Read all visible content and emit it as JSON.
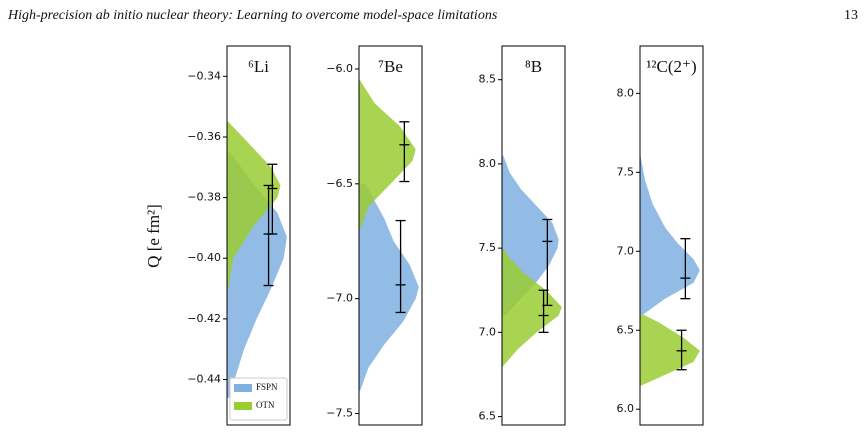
{
  "header": {
    "title": "High-precision ab initio nuclear theory: Learning to overcome model-space limitations",
    "page": "13"
  },
  "chart_data": [
    {
      "type": "density",
      "title": "⁶Li",
      "ylabel": "Q [e fm²]",
      "ylim": [
        -0.455,
        -0.33
      ],
      "xlim": [
        0,
        1
      ],
      "yticks": [
        {
          "value": -0.44,
          "label": "−0.44"
        },
        {
          "value": -0.42,
          "label": "−0.42"
        },
        {
          "value": -0.4,
          "label": "−0.40"
        },
        {
          "value": -0.38,
          "label": "−0.38"
        },
        {
          "value": -0.36,
          "label": "−0.36"
        },
        {
          "value": -0.34,
          "label": "−0.34"
        }
      ],
      "legend": "lower left",
      "series": [
        {
          "name": "FSPN",
          "color": "#7fb0e0",
          "y": [
            -0.446,
            -0.44,
            -0.43,
            -0.42,
            -0.41,
            -0.4,
            -0.393,
            -0.385,
            -0.375,
            -0.365
          ],
          "values": [
            0.05,
            0.12,
            0.27,
            0.47,
            0.7,
            0.9,
            0.95,
            0.8,
            0.4,
            0.05
          ]
        },
        {
          "name": "OTN",
          "color": "#9acd32",
          "y": [
            -0.41,
            -0.4,
            -0.39,
            -0.38,
            -0.376,
            -0.37,
            -0.36,
            -0.355
          ],
          "values": [
            0.02,
            0.1,
            0.4,
            0.8,
            0.85,
            0.7,
            0.25,
            0.02
          ]
        }
      ],
      "errorbars": [
        {
          "low": -0.392,
          "center": -0.377,
          "high": -0.369
        },
        {
          "low": -0.409,
          "center": -0.392,
          "high": -0.376
        }
      ]
    },
    {
      "type": "density",
      "title": "⁷Be",
      "ylim": [
        -7.55,
        -5.9
      ],
      "xlim": [
        0,
        1
      ],
      "yticks": [
        {
          "value": -7.5,
          "label": "−7.5"
        },
        {
          "value": -7.0,
          "label": "−7.0"
        },
        {
          "value": -6.5,
          "label": "−6.5"
        },
        {
          "value": -6.0,
          "label": "−6.0"
        }
      ],
      "series": [
        {
          "color": "#7fb0e0",
          "y": [
            -7.4,
            -7.3,
            -7.2,
            -7.1,
            -7.0,
            -6.95,
            -6.85,
            -6.75,
            -6.65,
            -6.5
          ],
          "values": [
            0.02,
            0.15,
            0.4,
            0.7,
            0.9,
            0.95,
            0.8,
            0.55,
            0.4,
            0.1
          ]
        },
        {
          "color": "#9acd32",
          "y": [
            -6.7,
            -6.6,
            -6.5,
            -6.4,
            -6.35,
            -6.25,
            -6.15,
            -6.05
          ],
          "values": [
            0.02,
            0.15,
            0.5,
            0.85,
            0.9,
            0.65,
            0.25,
            0.02
          ]
        }
      ],
      "errorbars": [
        {
          "low": -6.49,
          "center": -6.33,
          "high": -6.23
        },
        {
          "low": -7.06,
          "center": -6.94,
          "high": -6.66
        }
      ]
    },
    {
      "type": "density",
      "title": "⁸B",
      "ylim": [
        6.45,
        8.7
      ],
      "xlim": [
        0,
        1
      ],
      "yticks": [
        {
          "value": 6.5,
          "label": "6.5"
        },
        {
          "value": 7,
          "label": "7.0"
        },
        {
          "value": 7.5,
          "label": "7.5"
        },
        {
          "value": 8,
          "label": "8.0"
        },
        {
          "value": 8.5,
          "label": "8.5"
        }
      ],
      "series": [
        {
          "color": "#7fb0e0",
          "y": [
            7.1,
            7.2,
            7.3,
            7.4,
            7.5,
            7.55,
            7.65,
            7.75,
            7.85,
            7.95,
            8.05
          ],
          "values": [
            0.05,
            0.3,
            0.55,
            0.75,
            0.88,
            0.9,
            0.8,
            0.55,
            0.3,
            0.12,
            0.02
          ]
        },
        {
          "color": "#9acd32",
          "y": [
            6.8,
            6.9,
            7.0,
            7.1,
            7.15,
            7.25,
            7.35,
            7.45,
            7.5
          ],
          "values": [
            0.02,
            0.25,
            0.55,
            0.9,
            0.95,
            0.7,
            0.35,
            0.1,
            0.02
          ]
        }
      ],
      "errorbars": [
        {
          "low": 7.16,
          "center": 7.54,
          "high": 7.67
        },
        {
          "low": 7.0,
          "center": 7.1,
          "high": 7.25
        }
      ]
    },
    {
      "type": "density",
      "title": "¹²C(2⁺)",
      "ylim": [
        5.9,
        8.3
      ],
      "xlim": [
        0,
        1
      ],
      "yticks": [
        {
          "value": 6,
          "label": "6.0"
        },
        {
          "value": 6.5,
          "label": "6.5"
        },
        {
          "value": 7,
          "label": "7.0"
        },
        {
          "value": 7.5,
          "label": "7.5"
        },
        {
          "value": 8,
          "label": "8.0"
        }
      ],
      "series": [
        {
          "color": "#7fb0e0",
          "y": [
            6.6,
            6.7,
            6.8,
            6.88,
            6.95,
            7.05,
            7.15,
            7.3,
            7.45,
            7.6
          ],
          "values": [
            0.05,
            0.4,
            0.85,
            0.95,
            0.85,
            0.6,
            0.4,
            0.2,
            0.08,
            0.01
          ]
        },
        {
          "color": "#9acd32",
          "y": [
            6.15,
            6.2,
            6.3,
            6.37,
            6.45,
            6.55,
            6.6
          ],
          "values": [
            0.02,
            0.3,
            0.85,
            0.95,
            0.7,
            0.3,
            0.05
          ]
        }
      ],
      "errorbars": [
        {
          "low": 6.7,
          "center": 6.83,
          "high": 7.08
        },
        {
          "low": 6.25,
          "center": 6.37,
          "high": 6.5
        }
      ]
    }
  ]
}
